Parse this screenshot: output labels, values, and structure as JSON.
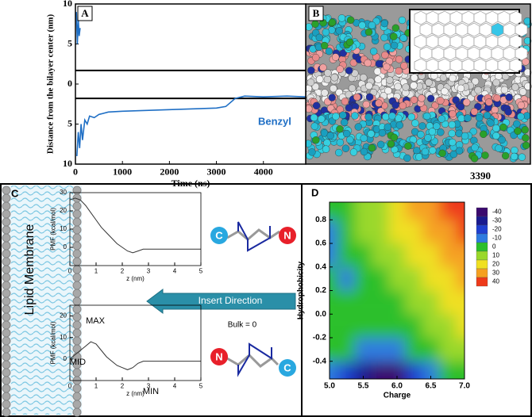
{
  "chart_data": [
    {
      "type": "line",
      "label": "A",
      "xlabel": "Time (ns)",
      "ylabel": "Distance from the bilayer center (nm)",
      "xlim": [
        0,
        4900
      ],
      "xticks": [
        0,
        1000,
        2000,
        3000,
        4000
      ],
      "ylim": [
        -10,
        10
      ],
      "yticks": [
        {
          "value": -10,
          "label": "10"
        },
        {
          "value": -5,
          "label": "5"
        },
        0,
        5,
        {
          "value": 10,
          "label": "10"
        }
      ],
      "series": [
        {
          "name": "Benzyl",
          "color": "#1f6fc5",
          "x": [
            20,
            40,
            60,
            80,
            100,
            0,
            30,
            60,
            90,
            120,
            150,
            200,
            250,
            300,
            400,
            500,
            700,
            1000,
            1500,
            2000,
            2500,
            3000,
            3200,
            3400,
            3600,
            4000,
            4500,
            4900
          ],
          "values": [
            9,
            5,
            8,
            6,
            7,
            null,
            -9,
            -6,
            -8,
            -5,
            -7,
            -4.5,
            -5,
            -4,
            -4.2,
            -3.8,
            -3.5,
            -3.4,
            -3.3,
            -3.2,
            -3.1,
            -3,
            -2.8,
            -1.8,
            -1.5,
            -1.6,
            -1.5,
            -1.6
          ]
        }
      ],
      "hlines": [
        1.7,
        -1.8
      ],
      "hline_color": "#000000"
    },
    {
      "type": "image",
      "label": "B",
      "caption": "3390"
    },
    {
      "type": "line",
      "label": "C",
      "xlabel": "z (nm)",
      "ylabel": "PMF (kcal/mol)",
      "xlim": [
        0,
        5
      ],
      "xticks": [
        0,
        1,
        2,
        3,
        4,
        5
      ],
      "ylim": [
        -10,
        30
      ],
      "yticks": [
        0,
        10,
        20,
        30
      ],
      "color": "#333333",
      "x": [
        0,
        0.2,
        0.4,
        0.6,
        0.8,
        1.0,
        1.2,
        1.4,
        1.6,
        1.8,
        2.0,
        2.2,
        2.4,
        2.6,
        2.8,
        3,
        3.5,
        4,
        4.5,
        5
      ],
      "values": [
        26,
        27,
        26,
        23,
        19,
        15,
        11,
        8,
        5,
        2,
        0,
        -2,
        -3,
        -2,
        -1,
        -1,
        -1,
        -1,
        -1,
        -1
      ],
      "annotations": {
        "membrane": "Lipid Membrane",
        "direction": "Insert Direction",
        "bulk": "Bulk = 0",
        "termini": [
          "C",
          "N"
        ]
      }
    },
    {
      "type": "line",
      "xlabel": "z (nm)",
      "ylabel": "PMF (kcal/mol)",
      "xlim": [
        0,
        5
      ],
      "xticks": [
        0,
        1,
        2,
        3,
        4,
        5
      ],
      "ylim": [
        -10,
        25
      ],
      "yticks": [
        0,
        10,
        20
      ],
      "color": "#333333",
      "x": [
        0,
        0.2,
        0.4,
        0.6,
        0.8,
        1.0,
        1.2,
        1.4,
        1.6,
        1.8,
        2.0,
        2.2,
        2.4,
        2.6,
        2.8,
        3,
        3.5,
        4,
        4.5,
        5
      ],
      "values": [
        0,
        2,
        4,
        6,
        8,
        7,
        4,
        1,
        -1,
        -3,
        -4,
        -5,
        -4,
        -2,
        -1,
        -1,
        -1,
        -1,
        -1,
        -1
      ],
      "annotations": {
        "max": "MAX",
        "mid": "MID",
        "min": "MIN",
        "termini": [
          "N",
          "C"
        ]
      }
    },
    {
      "type": "contour",
      "label": "D",
      "xlabel": "Charge",
      "ylabel": "Hydrophobicity",
      "xlim": [
        5,
        7
      ],
      "xticks": [
        {
          "value": 5,
          "label": "5.0"
        },
        5.5,
        {
          "value": 6,
          "label": "6.0"
        },
        6.5,
        {
          "value": 7,
          "label": "7.0"
        }
      ],
      "ylim": [
        -0.55,
        0.95
      ],
      "yticks": [
        0.8,
        0.6,
        0.4,
        0.2,
        {
          "value": 0,
          "label": "0.0"
        },
        -0.2,
        -0.4
      ],
      "x": [
        5,
        5.25,
        5.5,
        5.75,
        6,
        6.25,
        6.5,
        6.75,
        7
      ],
      "y": [
        0.9,
        0.7,
        0.5,
        0.3,
        0.1,
        -0.1,
        -0.3,
        -0.5
      ],
      "z": [
        [
          5,
          8,
          12,
          18,
          25,
          30,
          35,
          40,
          42
        ],
        [
          -2,
          3,
          10,
          16,
          22,
          28,
          32,
          37,
          40
        ],
        [
          -3,
          0,
          6,
          12,
          18,
          24,
          28,
          33,
          36
        ],
        [
          0,
          -1,
          2,
          8,
          14,
          19,
          24,
          28,
          32
        ],
        [
          2,
          3,
          0,
          3,
          9,
          14,
          18,
          22,
          26
        ],
        [
          5,
          6,
          5,
          2,
          4,
          8,
          12,
          16,
          20
        ],
        [
          3,
          0,
          -5,
          -8,
          -5,
          0,
          5,
          10,
          14
        ],
        [
          -5,
          -15,
          -30,
          -40,
          -35,
          -20,
          -5,
          3,
          8
        ]
      ],
      "levels": [
        -40,
        -30,
        -20,
        -10,
        0,
        10,
        20,
        30,
        40
      ],
      "colors": [
        "#3b0a6e",
        "#1a1a8f",
        "#1f3fd0",
        "#2e7be0",
        "#2bbf2b",
        "#9ad82a",
        "#f0e020",
        "#f5a020",
        "#ee3a1a"
      ]
    }
  ]
}
